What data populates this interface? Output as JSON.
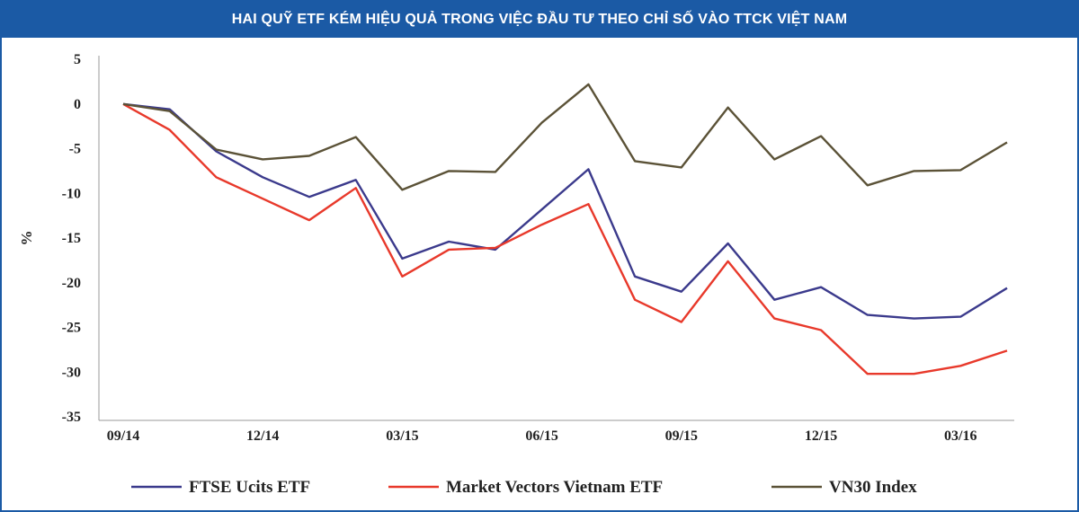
{
  "chart_data": {
    "type": "line",
    "title": "HAI QUỸ ETF KÉM HIỆU QUẢ TRONG VIỆC ĐẦU TƯ THEO CHỈ SỐ VÀO TTCK VIỆT NAM",
    "xlabel": "",
    "ylabel": "%",
    "ylim": [
      -35,
      5
    ],
    "yticks": [
      5,
      0,
      -5,
      -10,
      -15,
      -20,
      -25,
      -30,
      -35
    ],
    "x_ticks": [
      {
        "label": "09/14",
        "index": 0
      },
      {
        "label": "12/14",
        "index": 3
      },
      {
        "label": "03/15",
        "index": 6
      },
      {
        "label": "06/15",
        "index": 9
      },
      {
        "label": "09/15",
        "index": 12
      },
      {
        "label": "12/15",
        "index": 15
      },
      {
        "label": "03/16",
        "index": 18
      }
    ],
    "series": [
      {
        "name": "FTSE Ucits ETF",
        "color": "#3b3a8c",
        "values": [
          0,
          -0.6,
          -5.3,
          -8.2,
          -10.4,
          -8.5,
          -17.3,
          -15.4,
          -16.3,
          -11.8,
          -7.3,
          -19.3,
          -21.0,
          -15.6,
          -21.9,
          -20.5,
          -23.6,
          -24.0,
          -23.8,
          -20.6
        ]
      },
      {
        "name": "Market Vectors Vietnam ETF",
        "color": "#e8392b",
        "values": [
          0,
          -2.9,
          -8.2,
          -10.6,
          -13.0,
          -9.4,
          -19.3,
          -16.3,
          -16.1,
          -13.5,
          -11.2,
          -21.9,
          -24.4,
          -17.6,
          -24.0,
          -25.3,
          -30.2,
          -30.2,
          -29.3,
          -27.6
        ]
      },
      {
        "name": "VN30 Index",
        "color": "#5b5237",
        "values": [
          0,
          -0.8,
          -5.1,
          -6.2,
          -5.8,
          -3.7,
          -9.6,
          -7.5,
          -7.6,
          -2.1,
          2.2,
          -6.4,
          -7.1,
          -0.4,
          -6.2,
          -3.6,
          -9.1,
          -7.5,
          -7.4,
          -4.3
        ]
      }
    ]
  }
}
